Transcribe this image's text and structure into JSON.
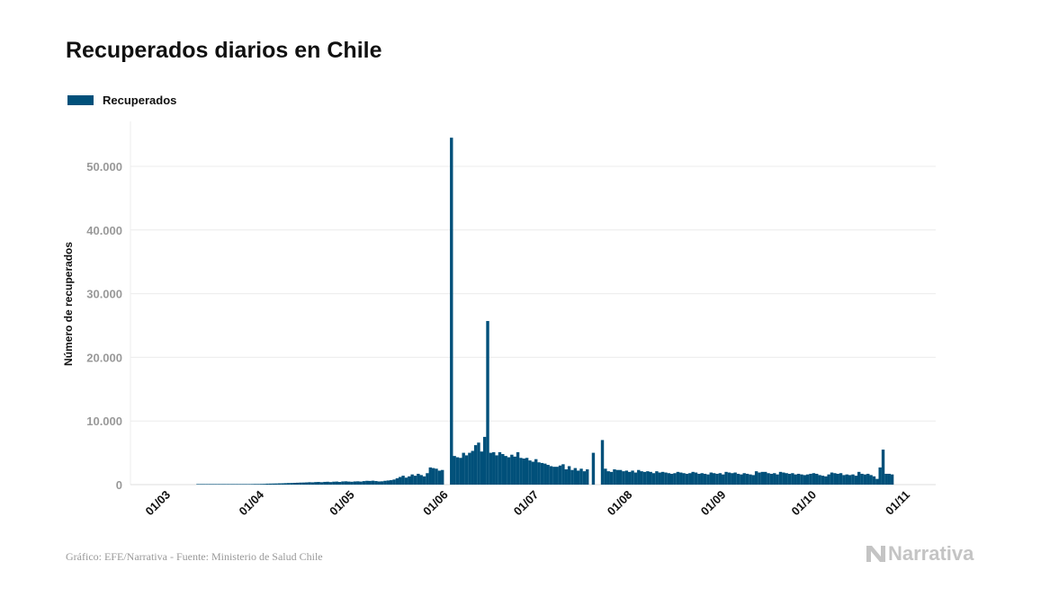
{
  "chart_data": {
    "type": "bar",
    "title": "Recuperados diarios en Chile",
    "legend": {
      "label": "Recuperados",
      "placement": "top-left"
    },
    "ylabel": "Número de recuperados",
    "xlabel": "",
    "ylim": [
      0,
      55000
    ],
    "yticks": [
      0,
      10000,
      20000,
      30000,
      40000,
      50000
    ],
    "ytick_labels": [
      "0",
      "10.000",
      "20.000",
      "30.000",
      "40.000",
      "50.000"
    ],
    "xtick_labels": [
      "01/03",
      "01/04",
      "01/05",
      "01/06",
      "01/07",
      "01/08",
      "01/09",
      "01/10",
      "01/11"
    ],
    "xtick_days": [
      0,
      31,
      61,
      92,
      122,
      153,
      184,
      214,
      245
    ],
    "x_start": "01/03",
    "x_step_days": 1,
    "grid": true,
    "color": "#00507a",
    "series": [
      {
        "name": "Recuperados",
        "values": [
          0,
          0,
          0,
          0,
          0,
          0,
          0,
          0,
          0,
          0,
          10,
          10,
          20,
          20,
          20,
          30,
          30,
          30,
          40,
          40,
          40,
          50,
          50,
          50,
          60,
          60,
          70,
          80,
          90,
          100,
          100,
          110,
          120,
          150,
          160,
          170,
          180,
          200,
          210,
          230,
          250,
          260,
          280,
          300,
          320,
          330,
          350,
          380,
          360,
          400,
          420,
          380,
          430,
          450,
          400,
          460,
          480,
          420,
          500,
          520,
          480,
          450,
          500,
          520,
          480,
          550,
          600,
          580,
          620,
          560,
          500,
          520,
          600,
          650,
          700,
          800,
          1000,
          1200,
          1400,
          1100,
          1300,
          1600,
          1400,
          1700,
          1500,
          1300,
          1800,
          2700,
          2600,
          2500,
          2200,
          2300,
          null,
          null,
          54500,
          4500,
          4300,
          4200,
          5000,
          4600,
          5000,
          5300,
          6200,
          6600,
          5200,
          7500,
          25700,
          5000,
          5100,
          4600,
          5100,
          4800,
          4500,
          4300,
          4700,
          4400,
          5100,
          4200,
          4100,
          4200,
          3800,
          3600,
          4000,
          3500,
          3400,
          3300,
          3100,
          2900,
          2800,
          2800,
          3000,
          3200,
          2400,
          2900,
          2300,
          2600,
          2200,
          2500,
          2100,
          2400,
          null,
          5000,
          null,
          null,
          7000,
          2500,
          2100,
          2000,
          2400,
          2300,
          2300,
          2100,
          2200,
          2000,
          2200,
          1900,
          2300,
          2100,
          2000,
          2100,
          2000,
          1800,
          2100,
          1900,
          2000,
          1900,
          1800,
          1700,
          1800,
          2000,
          1900,
          1800,
          1700,
          1800,
          2000,
          1900,
          1700,
          1800,
          1700,
          1600,
          1900,
          1800,
          1700,
          1800,
          1600,
          2000,
          1900,
          1800,
          1900,
          1700,
          1600,
          1800,
          1700,
          1600,
          1500,
          2100,
          1900,
          2000,
          2000,
          1800,
          1700,
          1800,
          1600,
          2000,
          1900,
          1800,
          1700,
          1800,
          1600,
          1700,
          1600,
          1500,
          1600,
          1700,
          1800,
          1700,
          1500,
          1400,
          1300,
          1600,
          1900,
          1800,
          1700,
          1800,
          1500,
          1600,
          1500,
          1600,
          1400,
          2000,
          1700,
          1600,
          1700,
          1500,
          1300,
          900,
          2700,
          5500,
          1700,
          1700,
          1600
        ]
      }
    ]
  },
  "footer": {
    "source": "Gráfico: EFE/Narrativa - Fuente: Ministerio de Salud Chile",
    "logo": "Narrativa"
  }
}
